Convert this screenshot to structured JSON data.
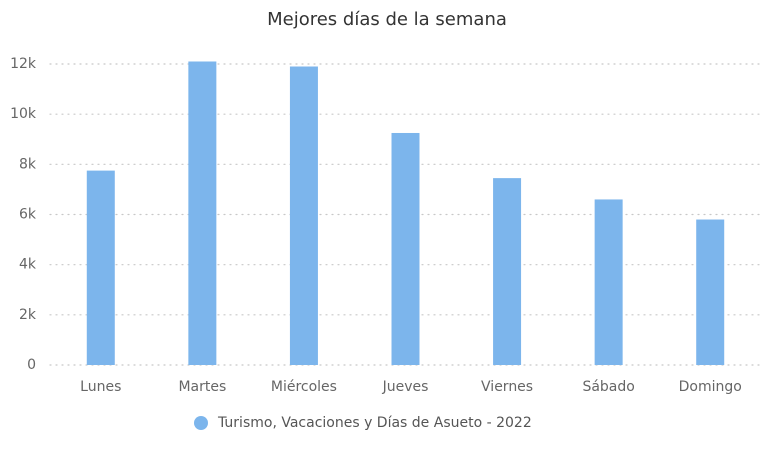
{
  "chart_data": {
    "type": "bar",
    "title": "Mejores días de la semana",
    "categories": [
      "Lunes",
      "Martes",
      "Miércoles",
      "Jueves",
      "Viernes",
      "Sábado",
      "Domingo"
    ],
    "series": [
      {
        "name": "Turismo, Vacaciones y Días de Asueto - 2022",
        "color": "#7cb5ec",
        "values": [
          7750,
          12100,
          11900,
          9250,
          7450,
          6600,
          5800
        ]
      }
    ],
    "ylim": [
      0,
      12000
    ],
    "yticks": [
      0,
      {
        "value": 2000,
        "label": "2k"
      },
      {
        "value": 4000,
        "label": "4k"
      },
      {
        "value": 6000,
        "label": "6k"
      },
      {
        "value": 8000,
        "label": "8k"
      },
      {
        "value": 10000,
        "label": "10k"
      },
      {
        "value": 12000,
        "label": "12k"
      }
    ],
    "grid": true,
    "legend": "bottom"
  }
}
